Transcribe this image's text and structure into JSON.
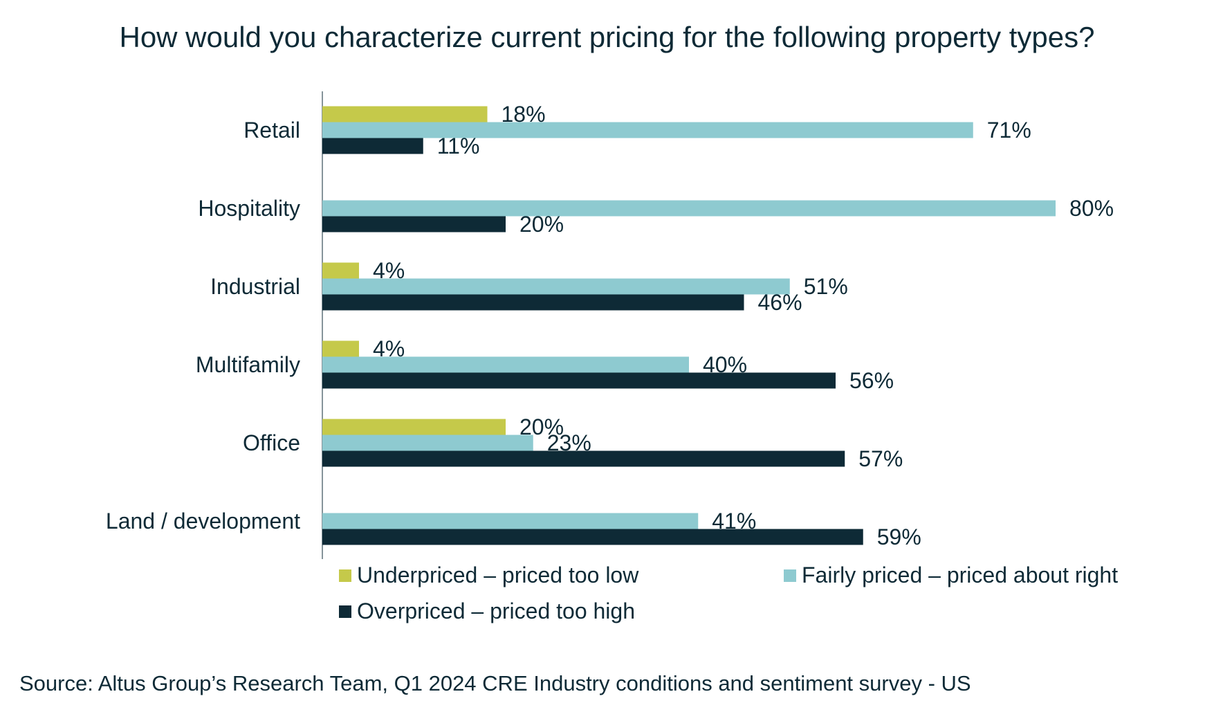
{
  "chart_data": {
    "type": "bar",
    "orientation": "horizontal",
    "title": "How would you characterize current pricing for the following property types?",
    "categories": [
      "Retail",
      "Hospitality",
      "Industrial",
      "Multifamily",
      "Office",
      "Land / development"
    ],
    "series": [
      {
        "name": "Underpriced – priced too low",
        "color": "#c5c94a",
        "values": [
          18,
          null,
          4,
          4,
          20,
          null
        ]
      },
      {
        "name": "Fairly priced – priced about right",
        "color": "#8ecad0",
        "values": [
          71,
          80,
          51,
          40,
          23,
          41
        ]
      },
      {
        "name": "Overpriced – priced too high",
        "color": "#0e2a36",
        "values": [
          11,
          20,
          46,
          56,
          57,
          59
        ]
      }
    ],
    "value_suffix": "%",
    "xlim": [
      0,
      80
    ],
    "grid": false,
    "legend_position": "bottom"
  },
  "source": "Source: Altus Group’s Research Team, Q1 2024 CRE Industry conditions and sentiment survey - US"
}
